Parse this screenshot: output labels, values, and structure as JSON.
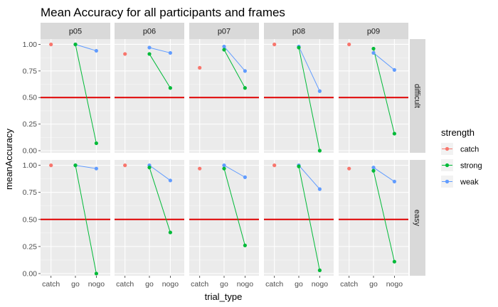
{
  "chart_data": {
    "type": "scatter",
    "title": "Mean Accuracy for all participants and frames",
    "xlabel": "trial_type",
    "ylabel": "meanAccuracy",
    "x_categories": [
      "catch",
      "go",
      "nogo"
    ],
    "y_ticks": [
      "0.00",
      "0.25",
      "0.50",
      "0.75",
      "1.00"
    ],
    "ylim": [
      -0.02,
      1.05
    ],
    "reference_line": {
      "y": 0.5,
      "color": "#e00000"
    },
    "facet_columns": [
      "p05",
      "p06",
      "p07",
      "p08",
      "p09"
    ],
    "facet_rows": [
      "difficult",
      "easy"
    ],
    "legend": {
      "title": "strength",
      "position": "right"
    },
    "series": [
      {
        "name": "catch",
        "color": "#F8766D"
      },
      {
        "name": "strong",
        "color": "#00BA38"
      },
      {
        "name": "weak",
        "color": "#619CFF"
      }
    ],
    "panels": [
      {
        "participant": "p05",
        "condition": "difficult",
        "catch": 1.0,
        "strong": {
          "go": 1.0,
          "nogo": 0.07
        },
        "weak": {
          "go": 1.0,
          "nogo": 0.94
        }
      },
      {
        "participant": "p06",
        "condition": "difficult",
        "catch": 0.91,
        "strong": {
          "go": 0.91,
          "nogo": 0.59
        },
        "weak": {
          "go": 0.97,
          "nogo": 0.92
        }
      },
      {
        "participant": "p07",
        "condition": "difficult",
        "catch": 0.78,
        "strong": {
          "go": 0.95,
          "nogo": 0.59
        },
        "weak": {
          "go": 0.98,
          "nogo": 0.75
        }
      },
      {
        "participant": "p08",
        "condition": "difficult",
        "catch": 1.0,
        "strong": {
          "go": 0.97,
          "nogo": 0.0
        },
        "weak": {
          "go": 0.98,
          "nogo": 0.56
        }
      },
      {
        "participant": "p09",
        "condition": "difficult",
        "catch": 1.0,
        "strong": {
          "go": 0.96,
          "nogo": 0.16
        },
        "weak": {
          "go": 0.92,
          "nogo": 0.76
        }
      },
      {
        "participant": "p05",
        "condition": "easy",
        "catch": 1.0,
        "strong": {
          "go": 1.0,
          "nogo": 0.0
        },
        "weak": {
          "go": 1.0,
          "nogo": 0.97
        }
      },
      {
        "participant": "p06",
        "condition": "easy",
        "catch": 1.0,
        "strong": {
          "go": 0.98,
          "nogo": 0.38
        },
        "weak": {
          "go": 1.0,
          "nogo": 0.86
        }
      },
      {
        "participant": "p07",
        "condition": "easy",
        "catch": 0.97,
        "strong": {
          "go": 0.97,
          "nogo": 0.26
        },
        "weak": {
          "go": 1.0,
          "nogo": 0.89
        }
      },
      {
        "participant": "p08",
        "condition": "easy",
        "catch": 1.0,
        "strong": {
          "go": 0.99,
          "nogo": 0.03
        },
        "weak": {
          "go": 1.0,
          "nogo": 0.78
        }
      },
      {
        "participant": "p09",
        "condition": "easy",
        "catch": 0.97,
        "strong": {
          "go": 0.95,
          "nogo": 0.11
        },
        "weak": {
          "go": 0.98,
          "nogo": 0.85
        }
      }
    ]
  }
}
